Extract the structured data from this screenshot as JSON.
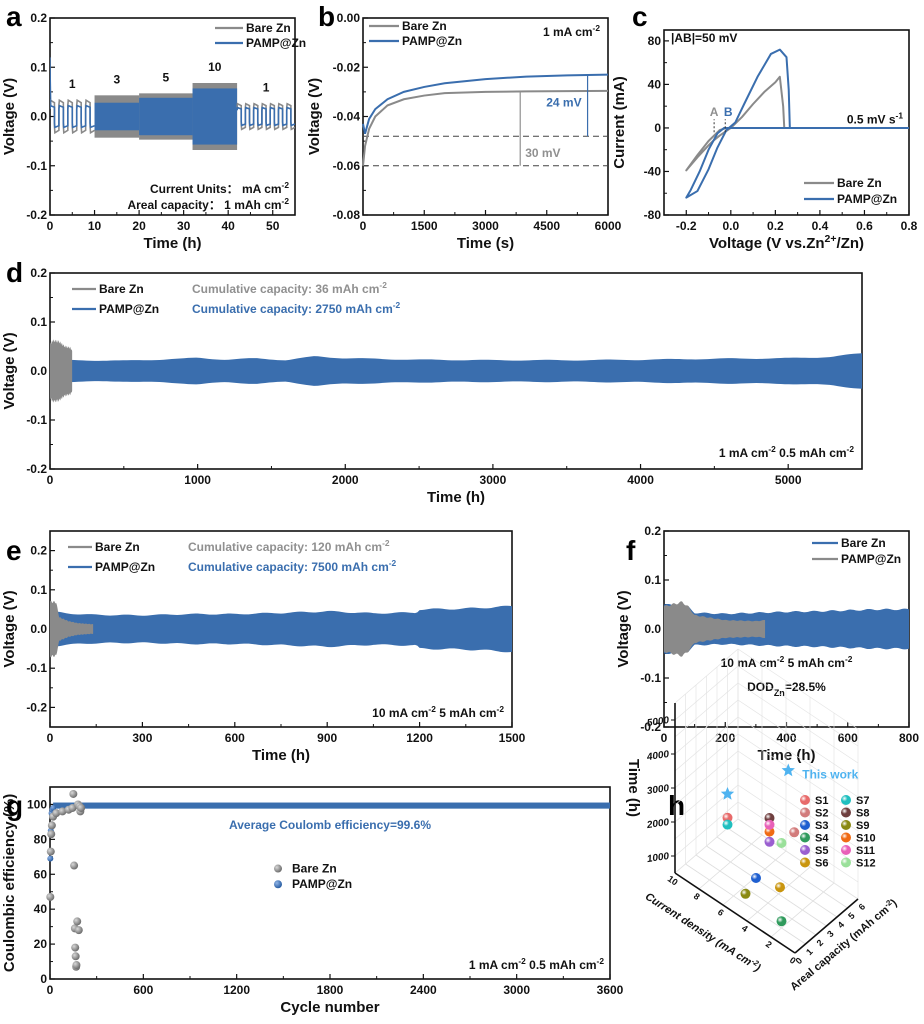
{
  "colors": {
    "bare": "#8a8a8a",
    "pamp": "#3a6eae",
    "this_work": "#4fb3f0",
    "annot_gray": "#909090"
  },
  "chart_data": [
    {
      "id": "a",
      "letter": "a",
      "type": "line",
      "xlabel": "Time (h)",
      "ylabel": "Voltage (V)",
      "xlim": [
        0,
        55
      ],
      "ylim": [
        -0.2,
        0.2
      ],
      "xticks": [
        0,
        10,
        20,
        30,
        40,
        50
      ],
      "yticks": [
        -0.2,
        -0.1,
        0.0,
        0.1,
        0.2
      ],
      "ytick_labels": [
        "-0.2",
        "-0.1",
        "0.0",
        "0.1",
        "0.2"
      ],
      "legend": [
        {
          "name": "Bare Zn",
          "color": "bare"
        },
        {
          "name": "PAMP@Zn",
          "color": "pamp"
        }
      ],
      "legend_position": "top-right",
      "segments": [
        {
          "label": "1",
          "x": [
            0,
            10
          ],
          "bare_amp": 0.033,
          "pamp_amp": 0.022,
          "cycles": 5
        },
        {
          "label": "3",
          "x": [
            10,
            20
          ],
          "bare_amp": 0.043,
          "pamp_amp": 0.028,
          "cycles": 15
        },
        {
          "label": "5",
          "x": [
            20,
            32
          ],
          "bare_amp": 0.047,
          "pamp_amp": 0.038,
          "cycles": 0
        },
        {
          "label": "10",
          "x": [
            32,
            42
          ],
          "bare_amp": 0.068,
          "pamp_amp": 0.057,
          "cycles": 0
        },
        {
          "label": "1",
          "x": [
            42,
            55
          ],
          "bare_amp": 0.026,
          "pamp_amp": 0.018,
          "cycles": 7
        }
      ],
      "annotations": [
        "Current Units： mA cm⁻²",
        "Areal capacity： 1 mAh cm⁻²"
      ]
    },
    {
      "id": "b",
      "letter": "b",
      "type": "line",
      "xlabel": "Time (s)",
      "ylabel": "Voltage (V)",
      "xlim": [
        0,
        6000
      ],
      "ylim": [
        -0.08,
        0.0
      ],
      "xticks": [
        0,
        1500,
        3000,
        4500,
        6000
      ],
      "yticks": [
        -0.08,
        -0.06,
        -0.04,
        -0.02,
        0.0
      ],
      "ytick_labels": [
        "-0.08",
        "-0.06",
        "-0.04",
        "-0.02",
        "0.00"
      ],
      "legend": [
        {
          "name": "Bare Zn",
          "color": "bare"
        },
        {
          "name": "PAMP@Zn",
          "color": "pamp"
        }
      ],
      "legend_position": "top-left",
      "series": [
        {
          "name": "Bare Zn",
          "color": "bare",
          "x": [
            0,
            50,
            150,
            300,
            600,
            1000,
            1500,
            2000,
            3000,
            4000,
            5000,
            6000
          ],
          "y": [
            -0.06,
            -0.052,
            -0.045,
            -0.04,
            -0.0355,
            -0.033,
            -0.0315,
            -0.0305,
            -0.03,
            -0.0298,
            -0.0297,
            -0.0296
          ]
        },
        {
          "name": "PAMP@Zn",
          "color": "pamp",
          "x": [
            0,
            50,
            150,
            300,
            600,
            1000,
            1500,
            2000,
            3000,
            4000,
            5000,
            6000
          ],
          "y": [
            -0.043,
            -0.047,
            -0.041,
            -0.037,
            -0.033,
            -0.03,
            -0.028,
            -0.0265,
            -0.0248,
            -0.0238,
            -0.0233,
            -0.023
          ]
        }
      ],
      "reference_lines": [
        -0.048,
        -0.06
      ],
      "annotations": {
        "condition": "1 mA cm⁻²",
        "pamp_delta": "24 mV",
        "bare_delta": "30 mV"
      }
    },
    {
      "id": "c",
      "letter": "c",
      "type": "line",
      "xlabel": "Voltage (V vs.Zn²⁺/Zn)",
      "ylabel": "Current (mA)",
      "xlim": [
        -0.3,
        0.8
      ],
      "ylim": [
        -80,
        90
      ],
      "xticks": [
        -0.2,
        0.0,
        0.2,
        0.4,
        0.6,
        0.8
      ],
      "xtick_labels": [
        "-0.2",
        "0.0",
        "0.2",
        "0.4",
        "0.6",
        "0.8"
      ],
      "yticks": [
        -80,
        -40,
        0,
        40,
        80
      ],
      "ytick_labels": [
        "-80",
        "-40",
        "0",
        "40",
        "80"
      ],
      "legend": [
        {
          "name": "Bare Zn",
          "color": "bare"
        },
        {
          "name": "PAMP@Zn",
          "color": "pamp"
        }
      ],
      "legend_position": "bottom-right",
      "series": [
        {
          "name": "Bare Zn",
          "color": "bare",
          "x": [
            0.8,
            0.24,
            0.235,
            0.22,
            0.2,
            0.15,
            0.1,
            0.05,
            0.0,
            -0.05,
            -0.08,
            -0.1,
            -0.15,
            -0.2,
            -0.15,
            -0.1,
            -0.05,
            -0.02,
            0.0,
            0.3,
            0.8
          ],
          "y": [
            0,
            0,
            20,
            47,
            42,
            33,
            22,
            10,
            0,
            -7,
            -12,
            -16,
            -27,
            -39,
            -25,
            -12,
            -2,
            0,
            0,
            0,
            0
          ]
        },
        {
          "name": "PAMP@Zn",
          "color": "pamp",
          "x": [
            0.8,
            0.265,
            0.26,
            0.25,
            0.22,
            0.18,
            0.12,
            0.06,
            0.02,
            -0.02,
            -0.06,
            -0.1,
            -0.15,
            -0.2,
            -0.18,
            -0.14,
            -0.1,
            -0.06,
            -0.03,
            0.0,
            0.3,
            0.8
          ],
          "y": [
            0,
            0,
            35,
            65,
            72,
            68,
            47,
            22,
            5,
            -2,
            -18,
            -38,
            -58,
            -64,
            -57,
            -40,
            -20,
            -5,
            0,
            0,
            0,
            0
          ]
        }
      ],
      "annotations": {
        "ab": "|AB|=50 mV",
        "scan_rate": "0.5 mV s⁻¹",
        "A_label": "A",
        "B_label": "B",
        "A_x": -0.075,
        "B_x": -0.025
      }
    },
    {
      "id": "d",
      "letter": "d",
      "type": "area",
      "xlabel": "Time (h)",
      "ylabel": "Voltage (V)",
      "xlim": [
        0,
        5500
      ],
      "ylim": [
        -0.2,
        0.2
      ],
      "xticks": [
        0,
        1000,
        2000,
        3000,
        4000,
        5000
      ],
      "yticks": [
        -0.2,
        -0.1,
        0.0,
        0.1,
        0.2
      ],
      "ytick_labels": [
        "-0.2",
        "-0.1",
        "0.0",
        "0.1",
        "0.2"
      ],
      "legend": [
        {
          "name": "Bare Zn",
          "color": "bare"
        },
        {
          "name": "PAMP@Zn",
          "color": "pamp"
        }
      ],
      "legend_position": "top-left",
      "series": [
        {
          "name": "PAMP@Zn",
          "color": "pamp",
          "x": [
            0,
            150,
            500,
            900,
            1000,
            1200,
            1400,
            1600,
            1800,
            2000,
            2500,
            3000,
            3500,
            4000,
            4500,
            5000,
            5300,
            5500
          ],
          "amp": [
            0.022,
            0.022,
            0.021,
            0.025,
            0.027,
            0.023,
            0.026,
            0.022,
            0.03,
            0.026,
            0.023,
            0.022,
            0.022,
            0.023,
            0.025,
            0.026,
            0.029,
            0.036
          ]
        },
        {
          "name": "Bare Zn",
          "color": "bare",
          "x": [
            0,
            20,
            60,
            100,
            140,
            150
          ],
          "amp": [
            0.055,
            0.062,
            0.06,
            0.05,
            0.047,
            0.04
          ]
        }
      ],
      "annotations": {
        "bare_capacity": "Cumulative capacity: 36 mAh cm⁻²",
        "pamp_capacity": "Cumulative capacity: 2750 mAh cm⁻²",
        "condition": "1 mA cm⁻²   0.5 mAh cm⁻²"
      }
    },
    {
      "id": "e",
      "letter": "e",
      "type": "area",
      "xlabel": "Time (h)",
      "ylabel": "Voltage (V)",
      "xlim": [
        0,
        1500
      ],
      "ylim": [
        -0.25,
        0.25
      ],
      "xticks": [
        0,
        300,
        600,
        900,
        1200,
        1500
      ],
      "yticks": [
        -0.2,
        -0.1,
        0.0,
        0.1,
        0.2
      ],
      "ytick_labels": [
        "-0.2",
        "-0.1",
        "0.0",
        "0.1",
        "0.2"
      ],
      "legend": [
        {
          "name": "Bare Zn",
          "color": "bare"
        },
        {
          "name": "PAMP@Zn",
          "color": "pamp"
        }
      ],
      "legend_position": "top-left",
      "series": [
        {
          "name": "PAMP@Zn",
          "color": "pamp",
          "x": [
            0,
            50,
            150,
            300,
            450,
            600,
            750,
            900,
            1050,
            1190,
            1200,
            1350,
            1500
          ],
          "amp": [
            0.045,
            0.04,
            0.036,
            0.035,
            0.038,
            0.038,
            0.041,
            0.045,
            0.04,
            0.042,
            0.05,
            0.052,
            0.058
          ]
        },
        {
          "name": "Bare Zn",
          "color": "bare",
          "x": [
            0,
            20,
            30,
            60,
            90,
            140
          ],
          "amp": [
            0.07,
            0.068,
            0.03,
            0.02,
            0.015,
            0.012
          ]
        }
      ],
      "annotations": {
        "bare_capacity": "Cumulative capacity: 120 mAh cm⁻²",
        "pamp_capacity": "Cumulative capacity: 7500 mAh cm⁻²",
        "condition": "10 mA cm⁻²   5 mAh cm⁻²"
      }
    },
    {
      "id": "f",
      "letter": "f",
      "type": "area",
      "xlabel": "Time (h)",
      "ylabel": "Voltage (V)",
      "xlim": [
        0,
        800
      ],
      "ylim": [
        -0.2,
        0.2
      ],
      "xticks": [
        0,
        200,
        400,
        600,
        800
      ],
      "yticks": [
        -0.2,
        -0.1,
        0.0,
        0.1,
        0.2
      ],
      "ytick_labels": [
        "-0.2",
        "-0.1",
        "0.0",
        "0.1",
        "0.2"
      ],
      "legend": [
        {
          "name": "Bare Zn",
          "color": "pamp"
        },
        {
          "name": "PAMP@Zn",
          "color": "bare"
        }
      ],
      "legend_position": "top-right",
      "series": [
        {
          "name": "Bare Zn",
          "color": "pamp",
          "x": [
            0,
            80,
            100,
            200,
            300,
            400,
            500,
            600,
            700,
            800
          ],
          "amp": [
            0.05,
            0.045,
            0.033,
            0.031,
            0.033,
            0.035,
            0.036,
            0.038,
            0.04,
            0.04
          ]
        },
        {
          "name": "PAMP@Zn",
          "color": "bare",
          "x": [
            0,
            60,
            80,
            100,
            200,
            300,
            330
          ],
          "amp": [
            0.046,
            0.055,
            0.045,
            0.028,
            0.018,
            0.016,
            0.018
          ]
        }
      ],
      "annotations": {
        "condition": "10 mA cm⁻² 5 mAh cm⁻²",
        "dod_prefix": "DOD",
        "dod_sub": "Zn",
        "dod_value": "=28.5%"
      }
    },
    {
      "id": "g",
      "letter": "g",
      "type": "scatter",
      "xlabel": "Cycle number",
      "ylabel": "Coulombic efficiency (%)",
      "xlim": [
        0,
        3600
      ],
      "ylim": [
        0,
        110
      ],
      "xticks": [
        0,
        600,
        1200,
        1800,
        2400,
        3000,
        3600
      ],
      "yticks": [
        0,
        20,
        40,
        60,
        80,
        100
      ],
      "ytick_labels": [
        "0",
        "20",
        "40",
        "60",
        "80",
        "100"
      ],
      "legend": [
        {
          "name": "Bare Zn",
          "color": "bare"
        },
        {
          "name": "PAMP@Zn",
          "color": "pamp"
        }
      ],
      "legend_position": "center",
      "series": [
        {
          "name": "Bare Zn",
          "color": "bare",
          "x": [
            2,
            5,
            8,
            12,
            20,
            40,
            80,
            120,
            145,
            150,
            155,
            160,
            162,
            165,
            168,
            170,
            175,
            180,
            185,
            190,
            195,
            200
          ],
          "y": [
            47,
            73,
            83,
            88,
            93,
            95,
            96,
            97,
            98,
            106,
            65,
            29,
            18,
            13,
            7,
            8,
            33,
            100,
            28,
            99,
            96,
            98
          ]
        },
        {
          "name": "PAMP@Zn",
          "color": "pamp",
          "x": [
            2,
            5,
            10,
            15,
            20
          ],
          "y": [
            69,
            85,
            95,
            97,
            98
          ],
          "steady_value": 99.6,
          "steady_from": 20,
          "steady_to": 3600
        }
      ],
      "annotations": {
        "average": "Average Coulomb efficiency=99.6%",
        "condition": "1 mA cm⁻² 0.5 mAh cm⁻²"
      }
    },
    {
      "id": "h",
      "letter": "h",
      "type": "scatter",
      "zlabel": "Time (h)",
      "xlabel": "Current density (mA cm⁻²)",
      "ylabel": "Areal capacity (mAh cm⁻²)",
      "zticks": [
        1000,
        2000,
        3000,
        4000,
        5000
      ],
      "xticks": [
        0,
        2,
        4,
        6,
        8,
        10
      ],
      "yticks": [
        0,
        1,
        2,
        3,
        4,
        5,
        6
      ],
      "this_work_label": "This work",
      "points": [
        {
          "name": "S1",
          "color": "#e86a6a",
          "current": 10,
          "capacity": 5,
          "time": 800
        },
        {
          "name": "S2",
          "color": "#d27b7b",
          "current": 0.5,
          "capacity": 0.5,
          "time": 3800
        },
        {
          "name": "S3",
          "color": "#1f5fd0",
          "current": 5,
          "capacity": 2,
          "time": 1000
        },
        {
          "name": "S4",
          "color": "#2f9a5c",
          "current": 2,
          "capacity": 1,
          "time": 700
        },
        {
          "name": "S5",
          "color": "#9a5fd0",
          "current": 3,
          "capacity": 1,
          "time": 2800
        },
        {
          "name": "S6",
          "color": "#c9950e",
          "current": 3,
          "capacity": 2,
          "time": 1200
        },
        {
          "name": "S7",
          "color": "#1fbfbf",
          "current": 10,
          "capacity": 5,
          "time": 600
        },
        {
          "name": "S8",
          "color": "#6f3f3f",
          "current": 3,
          "capacity": 1,
          "time": 3500
        },
        {
          "name": "S9",
          "color": "#8a8a12",
          "current": 5,
          "capacity": 1,
          "time": 800
        },
        {
          "name": "S10",
          "color": "#f06a14",
          "current": 3,
          "capacity": 1,
          "time": 3100
        },
        {
          "name": "S11",
          "color": "#e860b8",
          "current": 3,
          "capacity": 1,
          "time": 3300
        },
        {
          "name": "S12",
          "color": "#9ae09a",
          "current": 2,
          "capacity": 1,
          "time": 3000
        }
      ],
      "this_work": [
        {
          "current": 1,
          "capacity": 0.5,
          "time": 5500
        },
        {
          "current": 10,
          "capacity": 5,
          "time": 1500
        }
      ]
    }
  ]
}
